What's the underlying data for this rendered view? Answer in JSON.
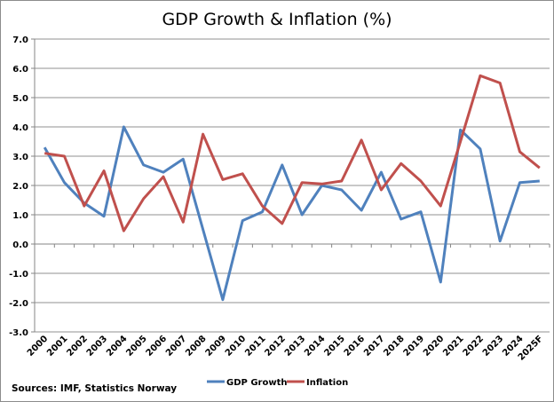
{
  "chart_data": {
    "type": "line",
    "title": "GDP Growth & Inflation (%)",
    "categories": [
      "2000",
      "2001",
      "2002",
      "2003",
      "2004",
      "2005",
      "2006",
      "2007",
      "2008",
      "2009",
      "2010",
      "2011",
      "2012",
      "2013",
      "2014",
      "2015",
      "2016",
      "2017",
      "2018",
      "2019",
      "2020",
      "2021",
      "2022",
      "2023",
      "2024",
      "2025F"
    ],
    "series": [
      {
        "name": "GDP Growth",
        "color": "#4f81bd",
        "values": [
          3.3,
          2.1,
          1.4,
          0.95,
          4.0,
          2.7,
          2.45,
          2.9,
          0.5,
          -1.9,
          0.8,
          1.1,
          2.7,
          1.0,
          2.0,
          1.85,
          1.15,
          2.45,
          0.85,
          1.1,
          -1.3,
          3.9,
          3.25,
          0.1,
          2.1,
          2.15
        ]
      },
      {
        "name": "Inflation",
        "color": "#c0504d",
        "values": [
          3.1,
          3.0,
          1.3,
          2.5,
          0.45,
          1.55,
          2.3,
          0.75,
          3.75,
          2.2,
          2.4,
          1.3,
          0.7,
          2.1,
          2.05,
          2.15,
          3.55,
          1.85,
          2.75,
          2.15,
          1.3,
          3.5,
          5.75,
          5.5,
          3.15,
          2.6
        ]
      }
    ],
    "yticks": [
      "7.0",
      "6.0",
      "5.0",
      "4.0",
      "3.0",
      "2.0",
      "1.0",
      "0.0",
      "-1.0",
      "-2.0",
      "-3.0"
    ],
    "ylim": [
      -3,
      7
    ],
    "grid": true,
    "legend": "bottom",
    "source": "Sources: IMF, Statistics Norway"
  }
}
